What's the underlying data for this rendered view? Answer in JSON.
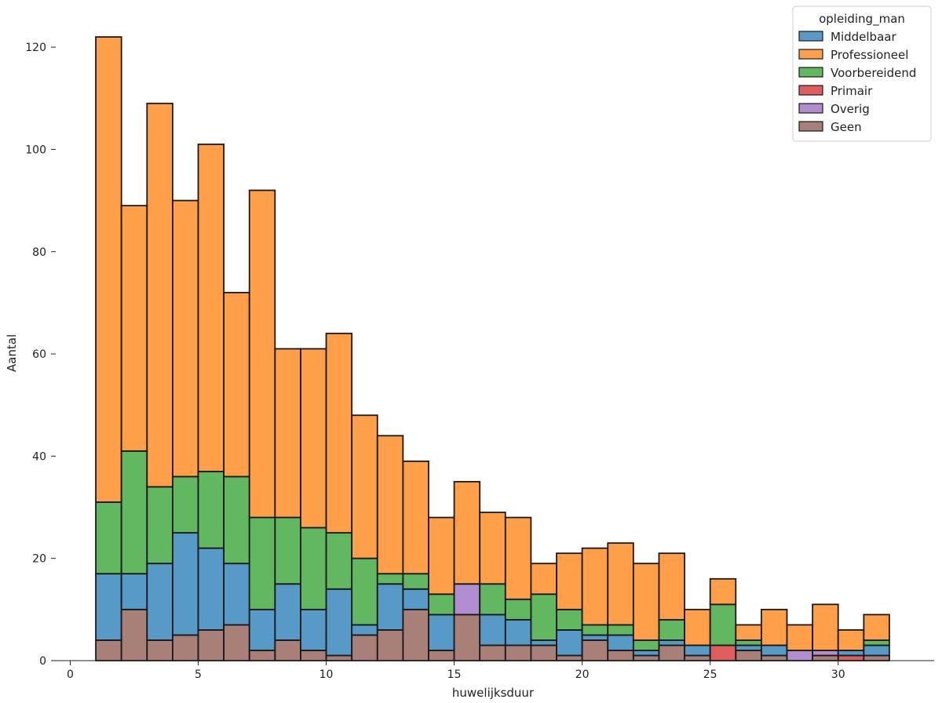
{
  "chart_data": {
    "type": "bar",
    "stacked": true,
    "title": "",
    "xlabel": "huwelijksduur",
    "ylabel": "Aantal",
    "xlim": [
      -0.75,
      33.75
    ],
    "ylim": [
      0,
      128
    ],
    "bin_edges": [
      1,
      2,
      3,
      4,
      5,
      6,
      7,
      8,
      9,
      10,
      11,
      12,
      13,
      14,
      15,
      16,
      17,
      18,
      19,
      20,
      21,
      22,
      23,
      24,
      25,
      26,
      27,
      28,
      29,
      30,
      31,
      32
    ],
    "xticks": [
      0,
      5,
      10,
      15,
      20,
      25,
      30
    ],
    "yticks": [
      0,
      20,
      40,
      60,
      80,
      100,
      120
    ],
    "grid": false,
    "legend": {
      "title": "opleiding_man",
      "placement": "top-right",
      "order": [
        "Middelbaar",
        "Professioneel",
        "Voorbereidend",
        "Primair",
        "Overig",
        "Geen"
      ]
    },
    "stack_order_bottom_to_top": [
      "Geen",
      "Overig",
      "Primair",
      "Middelbaar",
      "Voorbereidend",
      "Professioneel"
    ],
    "series": [
      {
        "name": "Middelbaar",
        "color": "#1f77b4",
        "values": [
          13,
          7,
          15,
          20,
          16,
          12,
          8,
          11,
          8,
          13,
          2,
          9,
          4,
          7,
          0,
          6,
          5,
          1,
          5,
          1,
          3,
          1,
          1,
          2,
          0,
          1,
          2,
          0,
          0,
          1,
          2
        ]
      },
      {
        "name": "Professioneel",
        "color": "#ff7f0e",
        "values": [
          91,
          48,
          75,
          54,
          64,
          36,
          64,
          33,
          35,
          39,
          28,
          27,
          22,
          15,
          20,
          14,
          16,
          6,
          11,
          15,
          16,
          15,
          13,
          7,
          5,
          3,
          7,
          5,
          9,
          4,
          5
        ]
      },
      {
        "name": "Voorbereidend",
        "color": "#2ca02c",
        "values": [
          14,
          24,
          15,
          11,
          15,
          17,
          18,
          13,
          16,
          11,
          13,
          2,
          3,
          4,
          0,
          6,
          4,
          9,
          4,
          2,
          2,
          2,
          4,
          0,
          8,
          1,
          0,
          0,
          0,
          0,
          1
        ]
      },
      {
        "name": "Primair",
        "color": "#d62728",
        "values": [
          0,
          0,
          0,
          0,
          0,
          0,
          0,
          0,
          0,
          0,
          0,
          0,
          0,
          0,
          0,
          0,
          0,
          0,
          0,
          0,
          0,
          0,
          0,
          0,
          3,
          0,
          0,
          0,
          0,
          1,
          0
        ]
      },
      {
        "name": "Overig",
        "color": "#9467bd",
        "values": [
          0,
          0,
          0,
          0,
          0,
          0,
          0,
          0,
          0,
          0,
          0,
          0,
          0,
          0,
          6,
          0,
          0,
          0,
          0,
          0,
          0,
          0,
          0,
          0,
          0,
          0,
          0,
          2,
          1,
          0,
          0
        ]
      },
      {
        "name": "Geen",
        "color": "#8c564b",
        "values": [
          4,
          10,
          4,
          5,
          6,
          7,
          2,
          4,
          2,
          1,
          5,
          6,
          10,
          2,
          9,
          3,
          3,
          3,
          1,
          4,
          2,
          1,
          3,
          1,
          0,
          2,
          1,
          0,
          1,
          0,
          1
        ]
      }
    ]
  }
}
